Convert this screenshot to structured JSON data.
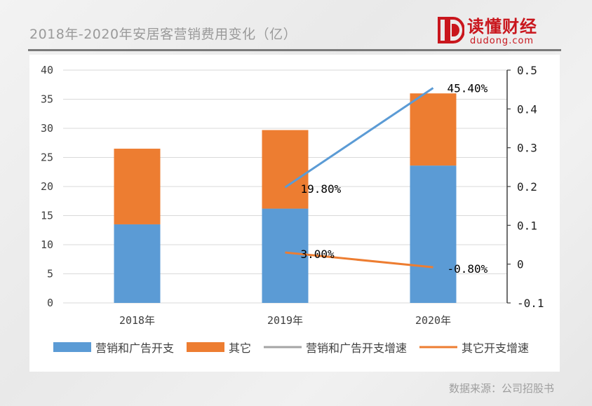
{
  "header": {
    "title": "2018年-2020年安居客营销费用变化（亿）",
    "logo_name": "读懂财经",
    "logo_domain": "dudong.com",
    "brand_color": "#c9161d"
  },
  "footer": {
    "source": "数据来源：公司招股书"
  },
  "chart_data": {
    "type": "bar",
    "stacked": true,
    "categories": [
      "2018年",
      "2019年",
      "2020年"
    ],
    "series": [
      {
        "name": "营销和广告开支",
        "kind": "bar",
        "axis": "left",
        "color": "#5b9bd5",
        "values": [
          13.5,
          16.2,
          23.6
        ]
      },
      {
        "name": "其它",
        "kind": "bar",
        "axis": "left",
        "color": "#ed7d31",
        "values": [
          13.0,
          13.5,
          12.4
        ]
      },
      {
        "name": "营销和广告开支增速",
        "kind": "line",
        "axis": "right",
        "color": "#5b9bd5",
        "legend_color": "#a5a5a5",
        "x": [
          "2019年",
          "2020年"
        ],
        "values": [
          0.198,
          0.454
        ],
        "labels": [
          "19.80%",
          "45.40%"
        ]
      },
      {
        "name": "其它开支增速",
        "kind": "line",
        "axis": "right",
        "color": "#ed7d31",
        "legend_color": "#ed7d31",
        "x": [
          "2019年",
          "2020年"
        ],
        "values": [
          0.03,
          -0.008
        ],
        "labels": [
          "3.00%",
          "-0.80%"
        ]
      }
    ],
    "ylim": [
      0,
      40
    ],
    "yticks": [
      "0",
      "5",
      "10",
      "15",
      "20",
      "25",
      "30",
      "35",
      "40"
    ],
    "y2lim": [
      -0.1,
      0.5
    ],
    "y2ticks": [
      "-0.1",
      "0",
      "0.1",
      "0.2",
      "0.3",
      "0.4",
      "0.5"
    ],
    "grid": true,
    "legend": "bottom"
  }
}
